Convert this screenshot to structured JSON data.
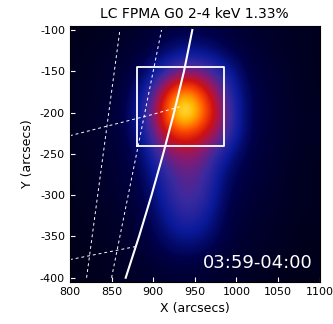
{
  "chart_data": {
    "type": "heatmap",
    "title": "LC FPMA G0 2-4 keV 1.33%",
    "x_label": "X (arcsecs)",
    "y_label": "Y (arcsecs)",
    "xlim": [
      800,
      1100
    ],
    "ylim": [
      -405,
      -95
    ],
    "xticks": [
      800,
      850,
      900,
      950,
      1000,
      1050,
      1100
    ],
    "yticks": [
      -400,
      -350,
      -300,
      -250,
      -200,
      -150,
      -100
    ],
    "x": [
      812.5,
      837.5,
      862.5,
      887.5,
      912.5,
      937.5,
      962.5,
      987.5,
      1012.5,
      1037.5,
      1062.5,
      1087.5
    ],
    "y": [
      -100,
      -125,
      -150,
      -175,
      -200,
      -225,
      -250,
      -275,
      -300,
      -325,
      -350,
      -375,
      -400
    ],
    "values": [
      [
        2,
        3,
        4,
        6,
        8,
        10,
        10,
        8,
        6,
        5,
        4,
        3
      ],
      [
        3,
        4,
        6,
        8,
        14,
        20,
        18,
        12,
        8,
        6,
        4,
        3
      ],
      [
        3,
        5,
        7,
        12,
        30,
        45,
        40,
        25,
        10,
        7,
        5,
        3
      ],
      [
        4,
        5,
        8,
        20,
        55,
        80,
        60,
        35,
        12,
        8,
        5,
        3
      ],
      [
        4,
        6,
        9,
        25,
        65,
        100,
        70,
        40,
        12,
        8,
        5,
        4
      ],
      [
        4,
        6,
        9,
        22,
        55,
        65,
        55,
        38,
        12,
        8,
        5,
        4
      ],
      [
        4,
        6,
        8,
        15,
        40,
        48,
        42,
        22,
        10,
        7,
        5,
        3
      ],
      [
        3,
        5,
        8,
        12,
        30,
        40,
        35,
        15,
        9,
        7,
        4,
        3
      ],
      [
        3,
        5,
        7,
        10,
        25,
        38,
        32,
        12,
        8,
        6,
        4,
        3
      ],
      [
        3,
        4,
        6,
        9,
        20,
        32,
        25,
        10,
        7,
        5,
        4,
        3
      ],
      [
        2,
        4,
        5,
        8,
        15,
        22,
        18,
        9,
        6,
        5,
        3,
        2
      ],
      [
        2,
        3,
        5,
        6,
        10,
        12,
        10,
        7,
        5,
        4,
        3,
        2
      ],
      [
        2,
        3,
        4,
        5,
        6,
        7,
        6,
        5,
        4,
        3,
        2,
        2
      ]
    ],
    "color_range": [
      0,
      100
    ],
    "annotations": [
      "03:59-04:00"
    ],
    "box": {
      "x": [
        880,
        985
      ],
      "y": [
        -240,
        -145
      ]
    },
    "limb": {
      "x": [
        867,
        883,
        898,
        912,
        925,
        937,
        947
      ],
      "y": [
        -400,
        -350,
        -300,
        -250,
        -200,
        -150,
        -100
      ]
    },
    "grid_lines": [
      {
        "x": [
          850,
          865,
          880,
          895,
          910
        ],
        "y": [
          -400,
          -325,
          -250,
          -175,
          -100
        ]
      },
      {
        "x": [
          820,
          830,
          840,
          850,
          860
        ],
        "y": [
          -400,
          -325,
          -250,
          -175,
          -100
        ]
      },
      {
        "x": [
          800,
          850,
          900,
          935
        ],
        "y": [
          -228,
          -215,
          -202,
          -192
        ]
      },
      {
        "x": [
          800,
          840,
          880
        ],
        "y": [
          -378,
          -370,
          -362
        ]
      }
    ]
  }
}
